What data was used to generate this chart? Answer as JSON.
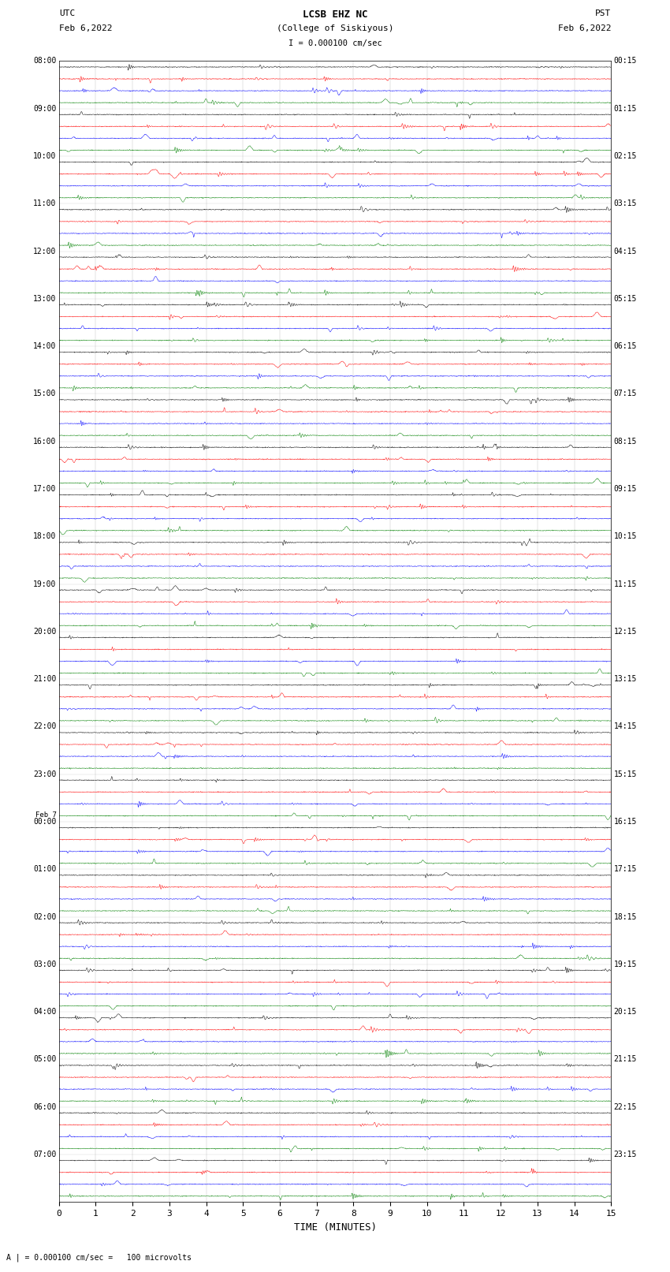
{
  "title_line1": "LCSB EHZ NC",
  "title_line2": "(College of Siskiyous)",
  "title_scale": "I = 0.000100 cm/sec",
  "left_label_top": "UTC",
  "left_label_date": "Feb 6,2022",
  "right_label_top": "PST",
  "right_label_date": "Feb 6,2022",
  "xlabel": "TIME (MINUTES)",
  "footer": "A | = 0.000100 cm/sec =   100 microvolts",
  "left_times_utc": [
    "08:00",
    "09:00",
    "10:00",
    "11:00",
    "12:00",
    "13:00",
    "14:00",
    "15:00",
    "16:00",
    "17:00",
    "18:00",
    "19:00",
    "20:00",
    "21:00",
    "22:00",
    "23:00",
    "Feb 7\n00:00",
    "01:00",
    "02:00",
    "03:00",
    "04:00",
    "05:00",
    "06:00",
    "07:00"
  ],
  "right_times_pst": [
    "00:15",
    "01:15",
    "02:15",
    "03:15",
    "04:15",
    "05:15",
    "06:15",
    "07:15",
    "08:15",
    "09:15",
    "10:15",
    "11:15",
    "12:15",
    "13:15",
    "14:15",
    "15:15",
    "16:15",
    "17:15",
    "18:15",
    "19:15",
    "20:15",
    "21:15",
    "22:15",
    "23:15"
  ],
  "colors": [
    "black",
    "red",
    "blue",
    "green"
  ],
  "n_hour_groups": 24,
  "n_traces_per_hour": 4,
  "n_samples": 1800,
  "x_min": 0,
  "x_max": 15,
  "xticks": [
    0,
    1,
    2,
    3,
    4,
    5,
    6,
    7,
    8,
    9,
    10,
    11,
    12,
    13,
    14,
    15
  ],
  "background_color": "white",
  "figure_width": 8.5,
  "figure_height": 16.13,
  "dpi": 100
}
